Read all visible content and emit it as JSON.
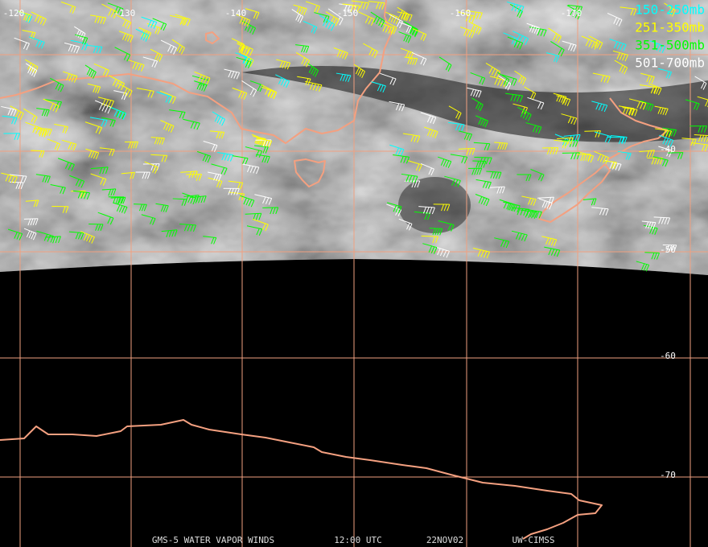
{
  "map": {
    "longitude_labels": [
      -120,
      -130,
      -140,
      -150,
      -160,
      -170
    ],
    "latitude_labels": [
      -40,
      -50,
      -60,
      -70
    ],
    "legend": [
      {
        "label": "150-250mb",
        "color": "#00ffff"
      },
      {
        "label": "251-350mb",
        "color": "#ffff00"
      },
      {
        "label": "351-500mb",
        "color": "#00ff00"
      },
      {
        "label": "501-700mb",
        "color": "#ffffff"
      }
    ],
    "footer": [
      "GMS-5 WATER VAPOR WINDS",
      "12:00 UTC",
      "22NOV02",
      "UW-CIMSS"
    ]
  }
}
